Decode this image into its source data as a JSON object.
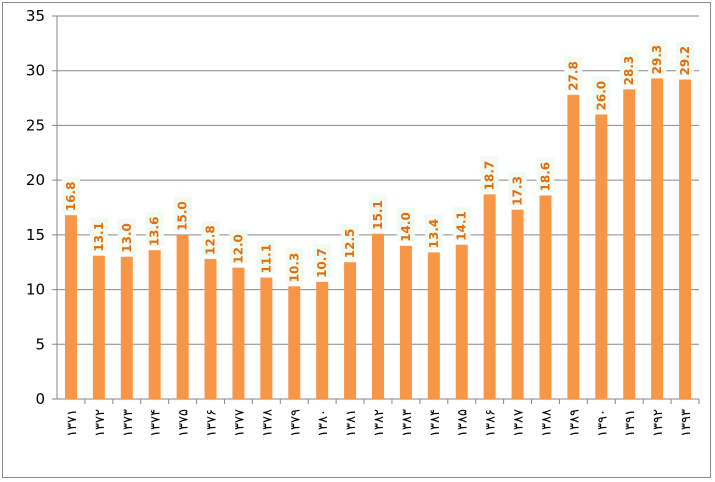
{
  "colors": {
    "bar": "#F79646",
    "label": "#E46C0A",
    "label_bg": "#F2FBF2",
    "grid": "#868686",
    "axis": "#868686"
  },
  "chart_data": {
    "type": "bar",
    "title": "",
    "xlabel": "",
    "ylabel": "",
    "ylim": [
      0,
      35
    ],
    "yticks": [
      0,
      5,
      10,
      15,
      20,
      25,
      30,
      35
    ],
    "grid": true,
    "legend": "none",
    "categories": [
      "۱۳۷۱",
      "۱۳۷۲",
      "۱۳۷۳",
      "۱۳۷۴",
      "۱۳۷۵",
      "۱۳۷۶",
      "۱۳۷۷",
      "۱۳۷۸",
      "۱۳۷۹",
      "۱۳۸۰",
      "۱۳۸۱",
      "۱۳۸۲",
      "۱۳۸۳",
      "۱۳۸۴",
      "۱۳۸۵",
      "۱۳۸۶",
      "۱۳۸۷",
      "۱۳۸۸",
      "۱۳۸۹",
      "۱۳۹۰",
      "۱۳۹۱",
      "۱۳۹۲",
      "۱۳۹۳"
    ],
    "values": [
      16.8,
      13.1,
      13.0,
      13.6,
      15.0,
      12.8,
      12.0,
      11.1,
      10.3,
      10.7,
      12.5,
      15.1,
      14.0,
      13.4,
      14.1,
      18.7,
      17.3,
      18.6,
      27.8,
      26.0,
      28.3,
      29.3,
      29.2
    ],
    "data_labels": [
      "16.8",
      "13.1",
      "13.0",
      "13.6",
      "15.0",
      "12.8",
      "12.0",
      "11.1",
      "10.3",
      "10.7",
      "12.5",
      "15.1",
      "14.0",
      "13.4",
      "14.1",
      "18.7",
      "17.3",
      "18.6",
      "27.8",
      "26.0",
      "28.3",
      "29.3",
      "29.2"
    ]
  }
}
